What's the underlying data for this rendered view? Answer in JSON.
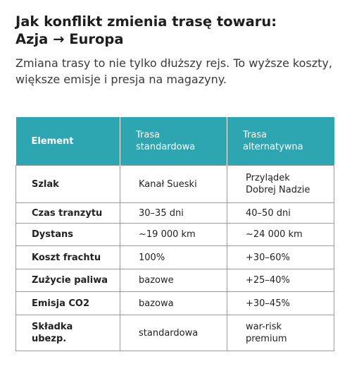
{
  "header": {
    "title": [
      "Jak konflikt zmienia trasę towaru:",
      "Azja → Europa"
    ],
    "subtitle": "Zmiana trasy to nie tylko dłuższy rejs. To wyższe koszty, większe emisje i presja na magazyny."
  },
  "table": {
    "columns": [
      "Element",
      "Trasa\nstandardowa",
      "Trasa\nalternatywna"
    ],
    "rows": [
      [
        "Szlak",
        "Kanał Sueski",
        "Przylądek\nDobrej Nadzie"
      ],
      [
        "Czas tranzytu",
        "30–35 dni",
        "40–50 dni"
      ],
      [
        "Dystans",
        "~19 000 km",
        "~24 000 km"
      ],
      [
        "Koszt frachtu",
        "100%",
        "+30–60%"
      ],
      [
        "Zużycie paliwa",
        "bazowe",
        "+25–40%"
      ],
      [
        "Emisja CO2",
        "bazowa",
        "+30–45%"
      ],
      [
        "Składka\nubezp.",
        "standardowa",
        "war-risk\npremium"
      ]
    ]
  }
}
